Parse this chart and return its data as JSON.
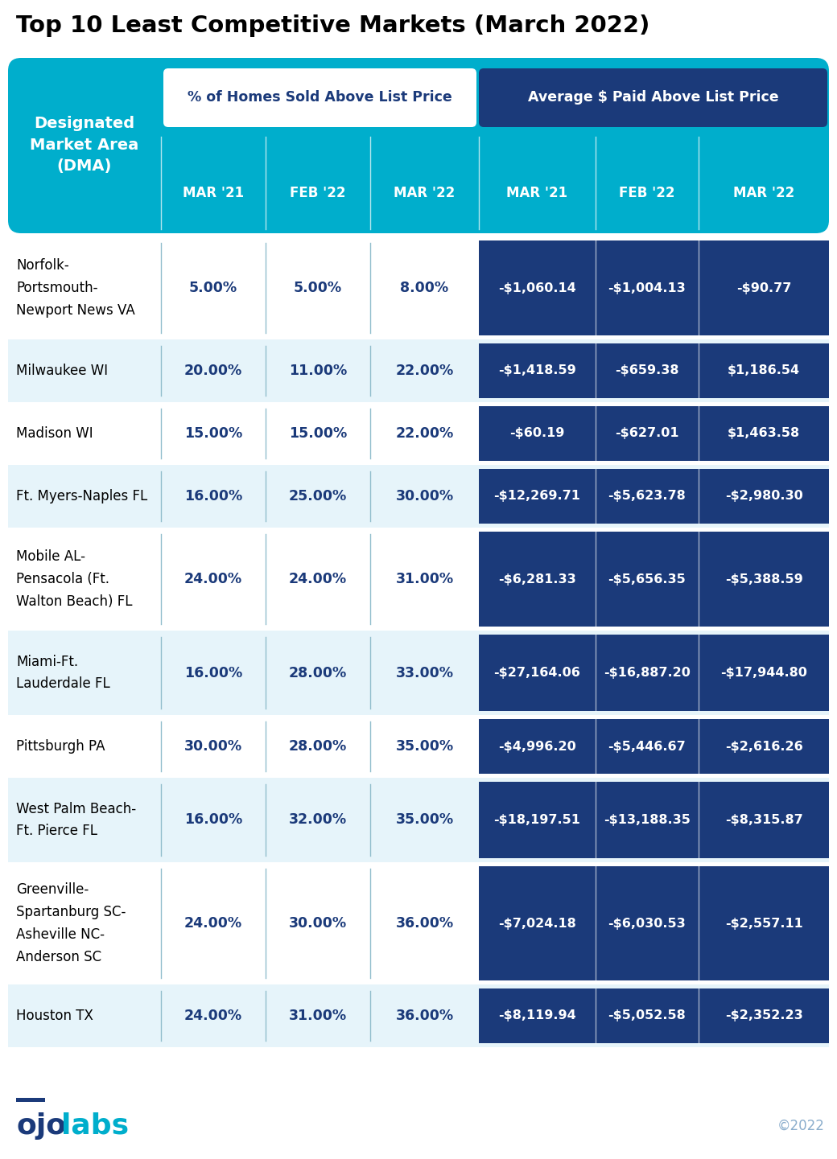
{
  "title": "Top 10 Least Competitive Markets (March 2022)",
  "header_bg": "#00AECC",
  "dark_blue": "#1B3A7A",
  "light_blue_row": "#E6F4FA",
  "white_row": "#FFFFFF",
  "pct_text_color": "#1B3A7A",
  "col1_header": "Designated\nMarket Area\n(DMA)",
  "group1_label": "% of Homes Sold Above List Price",
  "group2_label": "Average $ Paid Above List Price",
  "sub_headers": [
    "MAR '21",
    "FEB '22",
    "MAR '22",
    "MAR '21",
    "FEB '22",
    "MAR '22"
  ],
  "rows": [
    {
      "name": "Norfolk-\nPortsmouth-\nNewport News VA",
      "pct": [
        "5.00%",
        "5.00%",
        "8.00%"
      ],
      "avg": [
        "-$1,060.14",
        "-$1,004.13",
        "-$90.77"
      ],
      "bg": "#FFFFFF",
      "lines": 3
    },
    {
      "name": "Milwaukee WI",
      "pct": [
        "20.00%",
        "11.00%",
        "22.00%"
      ],
      "avg": [
        "-$1,418.59",
        "-$659.38",
        "$1,186.54"
      ],
      "bg": "#E6F4FA",
      "lines": 1
    },
    {
      "name": "Madison WI",
      "pct": [
        "15.00%",
        "15.00%",
        "22.00%"
      ],
      "avg": [
        "-$60.19",
        "-$627.01",
        "$1,463.58"
      ],
      "bg": "#FFFFFF",
      "lines": 1
    },
    {
      "name": "Ft. Myers-Naples FL",
      "pct": [
        "16.00%",
        "25.00%",
        "30.00%"
      ],
      "avg": [
        "-$12,269.71",
        "-$5,623.78",
        "-$2,980.30"
      ],
      "bg": "#E6F4FA",
      "lines": 1
    },
    {
      "name": "Mobile AL-\nPensacola (Ft.\nWalton Beach) FL",
      "pct": [
        "24.00%",
        "24.00%",
        "31.00%"
      ],
      "avg": [
        "-$6,281.33",
        "-$5,656.35",
        "-$5,388.59"
      ],
      "bg": "#FFFFFF",
      "lines": 3
    },
    {
      "name": "Miami-Ft.\nLauderdale FL",
      "pct": [
        "16.00%",
        "28.00%",
        "33.00%"
      ],
      "avg": [
        "-$27,164.06",
        "-$16,887.20",
        "-$17,944.80"
      ],
      "bg": "#E6F4FA",
      "lines": 2
    },
    {
      "name": "Pittsburgh PA",
      "pct": [
        "30.00%",
        "28.00%",
        "35.00%"
      ],
      "avg": [
        "-$4,996.20",
        "-$5,446.67",
        "-$2,616.26"
      ],
      "bg": "#FFFFFF",
      "lines": 1
    },
    {
      "name": "West Palm Beach-\nFt. Pierce FL",
      "pct": [
        "16.00%",
        "32.00%",
        "35.00%"
      ],
      "avg": [
        "-$18,197.51",
        "-$13,188.35",
        "-$8,315.87"
      ],
      "bg": "#E6F4FA",
      "lines": 2
    },
    {
      "name": "Greenville-\nSpartanburg SC-\nAsheville NC-\nAnderson SC",
      "pct": [
        "24.00%",
        "30.00%",
        "36.00%"
      ],
      "avg": [
        "-$7,024.18",
        "-$6,030.53",
        "-$2,557.11"
      ],
      "bg": "#FFFFFF",
      "lines": 4
    },
    {
      "name": "Houston TX",
      "pct": [
        "24.00%",
        "31.00%",
        "36.00%"
      ],
      "avg": [
        "-$8,119.94",
        "-$5,052.58",
        "-$2,352.23"
      ],
      "bg": "#E6F4FA",
      "lines": 1
    }
  ],
  "footer_copyright": "©2022"
}
